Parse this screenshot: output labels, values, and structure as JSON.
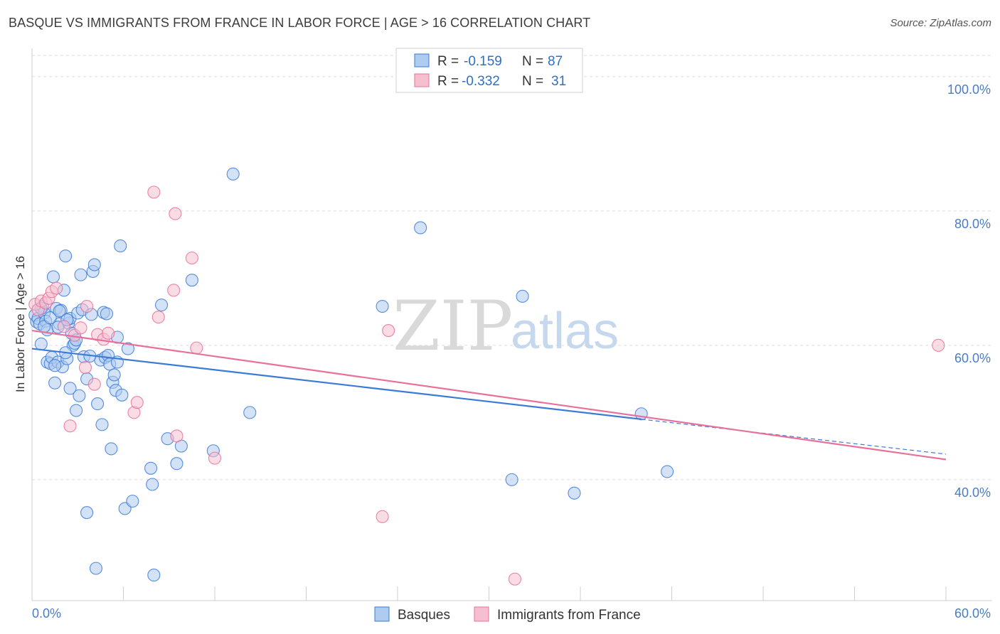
{
  "title": "BASQUE VS IMMIGRANTS FROM FRANCE IN LABOR FORCE | AGE > 16 CORRELATION CHART",
  "source": "Source: ZipAtlas.com",
  "watermark": {
    "zip": "ZIP",
    "atlas": "atlas"
  },
  "colors": {
    "blue": "#3b7bd8",
    "blue_fill": "#aecbf0",
    "pink": "#e8709a",
    "pink_fill": "#f6bfd0",
    "axis_label": "#4a7cc7",
    "grid": "#dcdcdc"
  },
  "legend": {
    "rows": [
      {
        "r_label": "R =",
        "r_value": "-0.159",
        "n_label": "N =",
        "n_value": "87"
      },
      {
        "r_label": "R =",
        "r_value": "-0.332",
        "n_label": "N =",
        "n_value": "31"
      }
    ]
  },
  "chart_data": {
    "type": "scatter",
    "ylabel": "In Labor Force | Age > 16",
    "xlim": [
      0,
      60
    ],
    "ylim": [
      22,
      104
    ],
    "x_tick_labels": [
      "0.0%",
      "60.0%"
    ],
    "y_ticks": [
      40,
      60,
      80,
      100
    ],
    "y_tick_labels": [
      "40.0%",
      "60.0%",
      "80.0%",
      "100.0%"
    ],
    "series": [
      {
        "name": "Basques",
        "color": "#3b7bd8",
        "trend": {
          "x": [
            0,
            40
          ],
          "y": [
            59.5,
            49.0
          ],
          "dashed_extension_to": [
            60,
            43.8
          ]
        },
        "points": [
          [
            0.2,
            64.5
          ],
          [
            0.3,
            63.5
          ],
          [
            0.4,
            64
          ],
          [
            0.5,
            63.2
          ],
          [
            0.6,
            60.2
          ],
          [
            0.7,
            65.8
          ],
          [
            0.8,
            64.8
          ],
          [
            0.9,
            63.6
          ],
          [
            1.0,
            62.3
          ],
          [
            1.0,
            57.5
          ],
          [
            1.2,
            57.3
          ],
          [
            1.3,
            58.2
          ],
          [
            1.4,
            70.2
          ],
          [
            1.5,
            54.4
          ],
          [
            1.6,
            65.5
          ],
          [
            1.7,
            57.5
          ],
          [
            1.8,
            63.2
          ],
          [
            1.9,
            65.2
          ],
          [
            2.0,
            56.8
          ],
          [
            2.1,
            68.2
          ],
          [
            2.2,
            73.3
          ],
          [
            2.3,
            58.0
          ],
          [
            2.4,
            63.3
          ],
          [
            2.5,
            64.0
          ],
          [
            2.5,
            53.6
          ],
          [
            2.6,
            61.8
          ],
          [
            2.7,
            60.0
          ],
          [
            2.8,
            60.3
          ],
          [
            2.9,
            50.3
          ],
          [
            3.0,
            64.8
          ],
          [
            3.1,
            52.5
          ],
          [
            3.2,
            70.5
          ],
          [
            3.3,
            65.3
          ],
          [
            3.4,
            58.3
          ],
          [
            3.6,
            55.0
          ],
          [
            3.9,
            64.6
          ],
          [
            4.0,
            71.0
          ],
          [
            4.1,
            72.0
          ],
          [
            4.3,
            51.3
          ],
          [
            4.5,
            57.8
          ],
          [
            4.6,
            48.2
          ],
          [
            4.7,
            64.9
          ],
          [
            4.8,
            58.2
          ],
          [
            5.0,
            58.5
          ],
          [
            5.1,
            57.2
          ],
          [
            5.2,
            44.6
          ],
          [
            5.3,
            54.5
          ],
          [
            5.4,
            55.6
          ],
          [
            5.5,
            53.3
          ],
          [
            5.6,
            57.5
          ],
          [
            5.8,
            74.8
          ],
          [
            5.9,
            52.6
          ],
          [
            6.1,
            35.7
          ],
          [
            6.3,
            59.5
          ],
          [
            6.6,
            36.8
          ],
          [
            7.8,
            41.7
          ],
          [
            7.9,
            39.3
          ],
          [
            8.0,
            25.8
          ],
          [
            8.5,
            66.0
          ],
          [
            8.9,
            46.1
          ],
          [
            9.5,
            42.4
          ],
          [
            9.8,
            45.0
          ],
          [
            10.5,
            69.7
          ],
          [
            11.9,
            44.3
          ],
          [
            13.2,
            85.5
          ],
          [
            14.3,
            50.0
          ],
          [
            23.0,
            65.8
          ],
          [
            25.5,
            77.5
          ],
          [
            32.2,
            67.3
          ],
          [
            31.5,
            40.0
          ],
          [
            35.6,
            38.0
          ],
          [
            40.0,
            49.8
          ],
          [
            41.7,
            41.2
          ],
          [
            3.6,
            35.1
          ],
          [
            4.2,
            26.8
          ],
          [
            1.7,
            62.7
          ],
          [
            2.9,
            60.8
          ],
          [
            0.8,
            62.8
          ],
          [
            0.6,
            65.5
          ],
          [
            1.2,
            64.1
          ],
          [
            1.8,
            65.1
          ],
          [
            2.3,
            63.8
          ],
          [
            4.9,
            64.7
          ],
          [
            5.6,
            61.2
          ],
          [
            3.8,
            58.4
          ],
          [
            2.2,
            58.9
          ],
          [
            1.5,
            57.0
          ]
        ]
      },
      {
        "name": "Immigrants from France",
        "color": "#e8709a",
        "trend": {
          "x": [
            0,
            60
          ],
          "y": [
            62.2,
            43.0
          ]
        },
        "points": [
          [
            0.2,
            66.1
          ],
          [
            0.4,
            65.3
          ],
          [
            0.6,
            66.6
          ],
          [
            0.9,
            66.3
          ],
          [
            1.1,
            67.0
          ],
          [
            1.3,
            68.0
          ],
          [
            1.6,
            68.5
          ],
          [
            2.1,
            62.8
          ],
          [
            2.5,
            48.0
          ],
          [
            2.8,
            61.5
          ],
          [
            3.2,
            62.6
          ],
          [
            3.5,
            56.7
          ],
          [
            3.6,
            65.8
          ],
          [
            4.1,
            54.2
          ],
          [
            4.3,
            61.6
          ],
          [
            4.7,
            60.9
          ],
          [
            5.0,
            61.8
          ],
          [
            6.7,
            50.0
          ],
          [
            6.9,
            51.5
          ],
          [
            8.0,
            82.8
          ],
          [
            8.3,
            64.2
          ],
          [
            9.3,
            68.2
          ],
          [
            9.4,
            79.6
          ],
          [
            9.5,
            46.5
          ],
          [
            10.5,
            73.0
          ],
          [
            10.8,
            59.6
          ],
          [
            12.0,
            43.2
          ],
          [
            23.0,
            34.5
          ],
          [
            23.4,
            62.2
          ],
          [
            31.7,
            25.2
          ],
          [
            59.5,
            60.0
          ]
        ]
      }
    ]
  },
  "bottom_legend": [
    {
      "label": "Basques"
    },
    {
      "label": "Immigrants from France"
    }
  ]
}
